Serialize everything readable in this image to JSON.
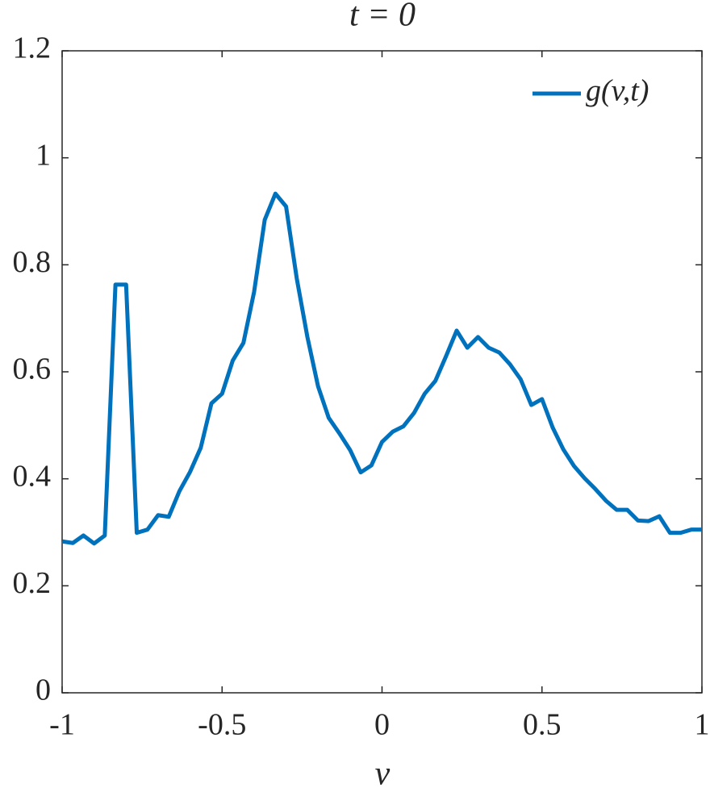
{
  "chart_data": {
    "type": "line",
    "title": "t = 0",
    "x_label": "v",
    "x": [
      -1,
      -0.9667,
      -0.9333,
      -0.9,
      -0.8667,
      -0.8333,
      -0.8,
      -0.7667,
      -0.7333,
      -0.7,
      -0.6667,
      -0.6333,
      -0.6,
      -0.5667,
      -0.5333,
      -0.5,
      -0.4667,
      -0.4333,
      -0.4,
      -0.3667,
      -0.3333,
      -0.3,
      -0.2667,
      -0.2333,
      -0.2,
      -0.1667,
      -0.1333,
      -0.1,
      -0.0667,
      -0.0333,
      0,
      0.0333,
      0.0667,
      0.1,
      0.1333,
      0.1667,
      0.2,
      0.2333,
      0.2667,
      0.3,
      0.3333,
      0.3667,
      0.4,
      0.4333,
      0.4667,
      0.5,
      0.5333,
      0.5667,
      0.6,
      0.6333,
      0.6667,
      0.7,
      0.7333,
      0.7667,
      0.8,
      0.8333,
      0.8667,
      0.9,
      0.9333,
      0.9667,
      1
    ],
    "series": [
      {
        "name": "g(v,t)",
        "color": "#0072bd",
        "values": [
          0.283,
          0.28,
          0.294,
          0.279,
          0.294,
          0.763,
          0.763,
          0.299,
          0.305,
          0.332,
          0.329,
          0.377,
          0.413,
          0.458,
          0.541,
          0.559,
          0.621,
          0.654,
          0.749,
          0.884,
          0.933,
          0.909,
          0.775,
          0.665,
          0.573,
          0.514,
          0.485,
          0.454,
          0.412,
          0.425,
          0.469,
          0.488,
          0.498,
          0.523,
          0.559,
          0.583,
          0.629,
          0.677,
          0.645,
          0.665,
          0.645,
          0.636,
          0.614,
          0.586,
          0.538,
          0.549,
          0.496,
          0.455,
          0.424,
          0.401,
          0.381,
          0.359,
          0.342,
          0.342,
          0.322,
          0.321,
          0.33,
          0.299,
          0.299,
          0.305,
          0.305
        ]
      }
    ],
    "xlim": [
      -1,
      1
    ],
    "xticks": [
      -1,
      -0.5,
      0,
      0.5,
      1
    ],
    "ylim": [
      0,
      1.2
    ],
    "yticks": [
      0,
      0.2,
      0.4,
      0.6,
      0.8,
      1,
      1.2
    ],
    "grid": false,
    "legend": "upper right"
  }
}
